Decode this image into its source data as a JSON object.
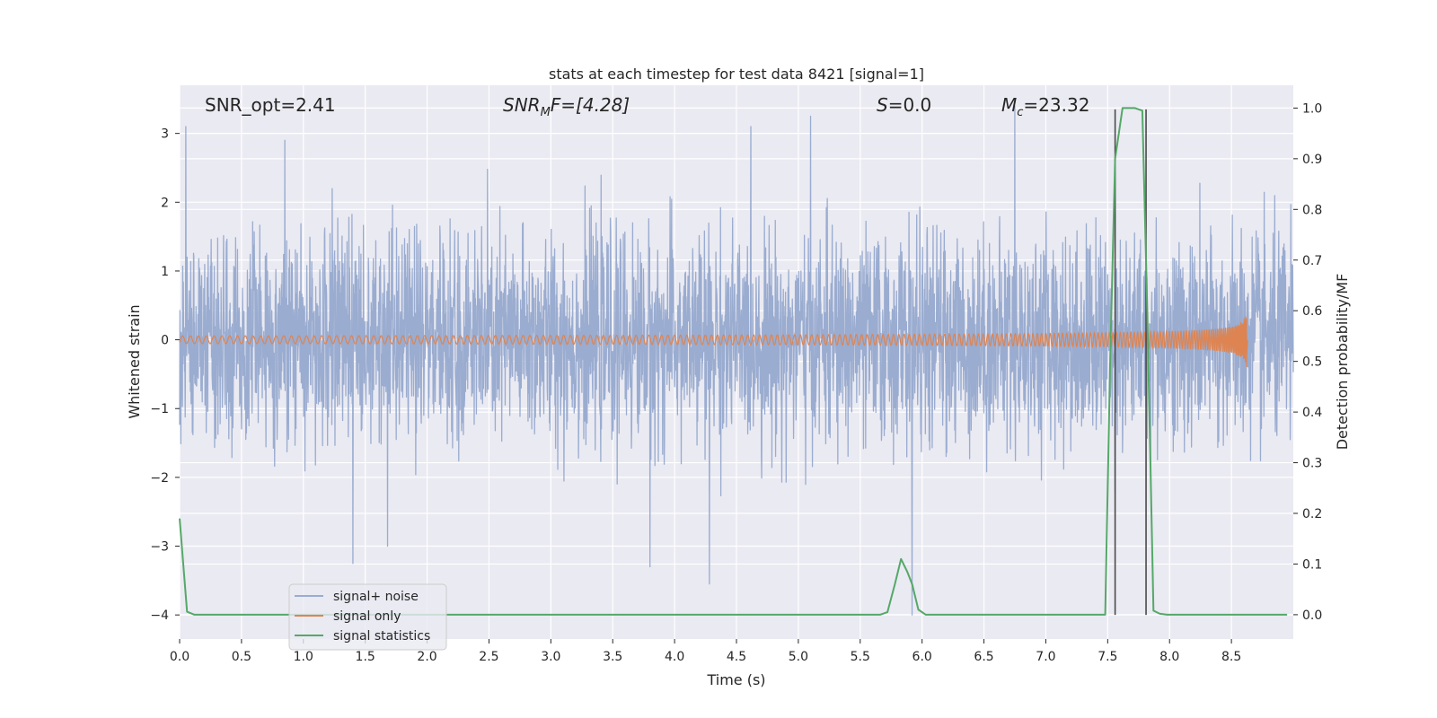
{
  "chart_data": {
    "type": "line",
    "title": "stats at each timestep for test data 8421 [signal=1]",
    "xlabel": "Time (s)",
    "ylabel": "Whitened strain",
    "ylabel_right": "Detection probability/MF",
    "xlim": [
      0.0,
      9.0
    ],
    "ylim": [
      -4.35,
      3.7
    ],
    "ylim_right": [
      -0.048,
      1.045
    ],
    "x_ticks": [
      "0.0",
      "0.5",
      "1.0",
      "1.5",
      "2.0",
      "2.5",
      "3.0",
      "3.5",
      "4.0",
      "4.5",
      "5.0",
      "5.5",
      "6.0",
      "6.5",
      "7.0",
      "7.5",
      "8.0",
      "8.5"
    ],
    "y_ticks": [
      "−4",
      "−3",
      "−2",
      "−1",
      "0",
      "1",
      "2",
      "3"
    ],
    "y_ticks_right": [
      "0.0",
      "0.1",
      "0.2",
      "0.3",
      "0.4",
      "0.5",
      "0.6",
      "0.7",
      "0.8",
      "0.9",
      "1.0"
    ],
    "grid": true,
    "legend_position": "lower-left",
    "colors": {
      "signal_noise": "#9aacd0",
      "signal_only": "#dd8452",
      "signal_statistics": "#55a868",
      "marker_lines": "#4a4a4a",
      "plot_background": "#eaeaf2",
      "grid": "#ffffff"
    },
    "annotations": {
      "snr_opt": "SNR_opt=2.41",
      "snr_mf_main": "SNR",
      "snr_mf_sub": "M",
      "snr_mf_rest": "F=[4.28]",
      "s_main": "S",
      "s_rest": "=0.0",
      "mc_main": "M",
      "mc_sub": "c",
      "mc_rest": "=23.32"
    },
    "series": [
      {
        "name": "signal+ noise",
        "kind": "noise",
        "axis": "left",
        "x_range": [
          0.0,
          9.0
        ],
        "sigma": 0.75,
        "visible_range": [
          -4.0,
          3.1
        ],
        "notable_spikes": [
          {
            "x": 0.05,
            "y": 3.1
          },
          {
            "x": 0.85,
            "y": 2.9
          },
          {
            "x": 1.4,
            "y": -3.25
          },
          {
            "x": 1.68,
            "y": -3.0
          },
          {
            "x": 3.8,
            "y": -3.3
          },
          {
            "x": 4.28,
            "y": -3.55
          },
          {
            "x": 5.1,
            "y": 3.25
          },
          {
            "x": 5.92,
            "y": -4.0
          },
          {
            "x": 6.75,
            "y": 3.4
          }
        ]
      },
      {
        "name": "signal only",
        "kind": "chirp",
        "axis": "left",
        "x_range": [
          0.0,
          8.63
        ],
        "max_amplitude": 0.5,
        "merger_time": 8.63
      },
      {
        "name": "signal statistics",
        "kind": "line",
        "axis": "right",
        "x": [
          0.0,
          0.06,
          0.12,
          5.6,
          5.66,
          5.72,
          5.78,
          5.83,
          5.88,
          5.92,
          5.97,
          6.03,
          7.48,
          7.52,
          7.56,
          7.62,
          7.72,
          7.78,
          7.82,
          7.87,
          7.92,
          7.98,
          8.95
        ],
        "y": [
          0.19,
          0.006,
          0.0,
          0.0,
          0.0,
          0.005,
          0.06,
          0.11,
          0.085,
          0.06,
          0.01,
          0.0,
          0.0,
          0.5,
          0.9,
          1.0,
          1.0,
          0.995,
          0.6,
          0.008,
          0.002,
          0.0,
          0.0
        ]
      }
    ],
    "vertical_markers_x": [
      7.56,
      7.81
    ],
    "legend": [
      {
        "label": "signal+ noise",
        "color_key": "signal_noise"
      },
      {
        "label": "signal only",
        "color_key": "signal_only"
      },
      {
        "label": "signal statistics",
        "color_key": "signal_statistics"
      }
    ]
  }
}
